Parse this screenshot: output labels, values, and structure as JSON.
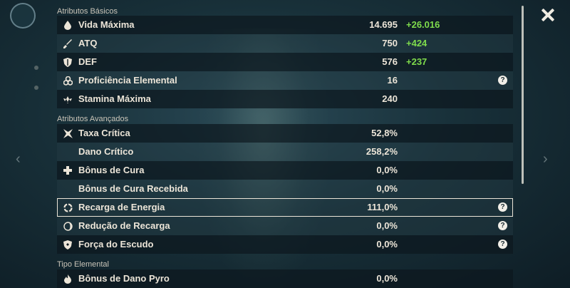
{
  "sections": {
    "basic": {
      "title": "Atributos Básicos",
      "rows": [
        {
          "label": "Vida Máxima",
          "value": "14.695",
          "bonus": "+26.016",
          "icon": "drop-icon"
        },
        {
          "label": "ATQ",
          "value": "750",
          "bonus": "+424",
          "icon": "sword-icon"
        },
        {
          "label": "DEF",
          "value": "576",
          "bonus": "+237",
          "icon": "shield-icon"
        },
        {
          "label": "Proficiência Elemental",
          "value": "16",
          "icon": "elemental-mastery-icon",
          "help": "?"
        },
        {
          "label": "Stamina Máxima",
          "value": "240",
          "icon": "stamina-icon"
        }
      ]
    },
    "advanced": {
      "title": "Atributos Avançados",
      "rows": [
        {
          "label": "Taxa Crítica",
          "value": "52,8%",
          "icon": "crit-rate-icon"
        },
        {
          "label": "Dano Crítico",
          "value": "258,2%"
        },
        {
          "label": "Bônus de Cura",
          "value": "0,0%",
          "icon": "healing-cross-icon"
        },
        {
          "label": "Bônus de Cura Recebida",
          "value": "0,0%"
        },
        {
          "label": "Recarga de Energia",
          "value": "111,0%",
          "icon": "energy-recharge-icon",
          "help": "?"
        },
        {
          "label": "Redução de Recarga",
          "value": "0,0%",
          "icon": "cd-reduction-icon",
          "help": "?"
        },
        {
          "label": "Força do Escudo",
          "value": "0,0%",
          "icon": "shield-strength-icon",
          "help": "?"
        }
      ]
    },
    "elemental": {
      "title": "Tipo Elemental",
      "rows": [
        {
          "label": "Bônus de Dano Pyro",
          "value": "0,0%",
          "icon": "pyro-icon"
        }
      ]
    }
  },
  "colors": {
    "bonus": "#7fdc4c",
    "text": "#ece5d8"
  }
}
